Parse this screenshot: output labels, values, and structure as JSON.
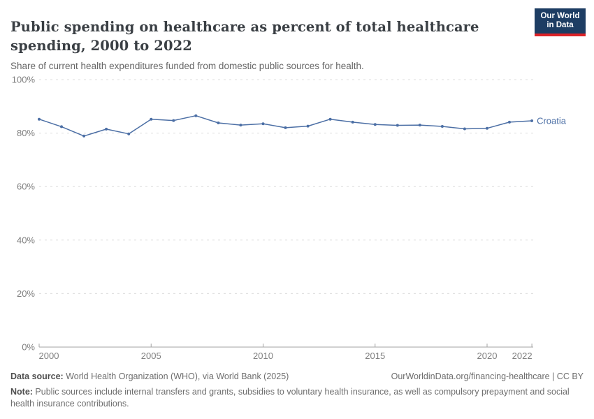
{
  "header": {
    "title": "Public spending on healthcare as percent of total healthcare spending, 2000 to 2022",
    "subtitle": "Share of current health expenditures funded from domestic public sources for health.",
    "logo": {
      "line1": "Our World",
      "line2": "in Data",
      "bg_color": "#1d3d63",
      "accent_color": "#dc2227"
    }
  },
  "chart_data": {
    "type": "line",
    "title": "Public spending on healthcare as percent of total healthcare spending, 2000 to 2022",
    "xlabel": "",
    "ylabel": "",
    "xlim": [
      2000,
      2022
    ],
    "ylim": [
      0,
      100
    ],
    "grid": "horizontal-dashed",
    "legend_position": "end-of-line-label",
    "x": [
      2000,
      2001,
      2002,
      2003,
      2004,
      2005,
      2006,
      2007,
      2008,
      2009,
      2010,
      2011,
      2012,
      2013,
      2014,
      2015,
      2016,
      2017,
      2018,
      2019,
      2020,
      2021,
      2022
    ],
    "series": [
      {
        "name": "Croatia",
        "color": "#4c6fa5",
        "values": [
          85.2,
          82.4,
          78.9,
          81.5,
          79.7,
          85.2,
          84.7,
          86.5,
          83.8,
          83.0,
          83.5,
          82.0,
          82.6,
          85.2,
          84.1,
          83.2,
          82.9,
          83.0,
          82.5,
          81.6,
          81.8,
          84.1,
          84.6
        ]
      }
    ],
    "x_ticks": [
      {
        "label": "2000",
        "value": 2000
      },
      {
        "label": "2005",
        "value": 2005
      },
      {
        "label": "2010",
        "value": 2010
      },
      {
        "label": "2015",
        "value": 2015
      },
      {
        "label": "2020",
        "value": 2020
      },
      {
        "label": "2022",
        "value": 2022
      }
    ],
    "y_ticks": [
      {
        "label": "0%",
        "value": 0
      },
      {
        "label": "20%",
        "value": 20
      },
      {
        "label": "40%",
        "value": 40
      },
      {
        "label": "60%",
        "value": 60
      },
      {
        "label": "80%",
        "value": 80
      },
      {
        "label": "100%",
        "value": 100
      }
    ],
    "colors": {
      "gridline": "#dcdcdc",
      "axis": "#a3a3a3",
      "tick_text": "#7f7f7f"
    }
  },
  "footer": {
    "datasource_label": "Data source:",
    "datasource_text": " World Health Organization (WHO), via World Bank (2025)",
    "link": "OurWorldinData.org/financing-healthcare | CC BY",
    "note_label": "Note:",
    "note_text": " Public sources include internal transfers and grants, subsidies to voluntary health insurance, as well as compulsory prepayment and social health insurance contributions."
  }
}
